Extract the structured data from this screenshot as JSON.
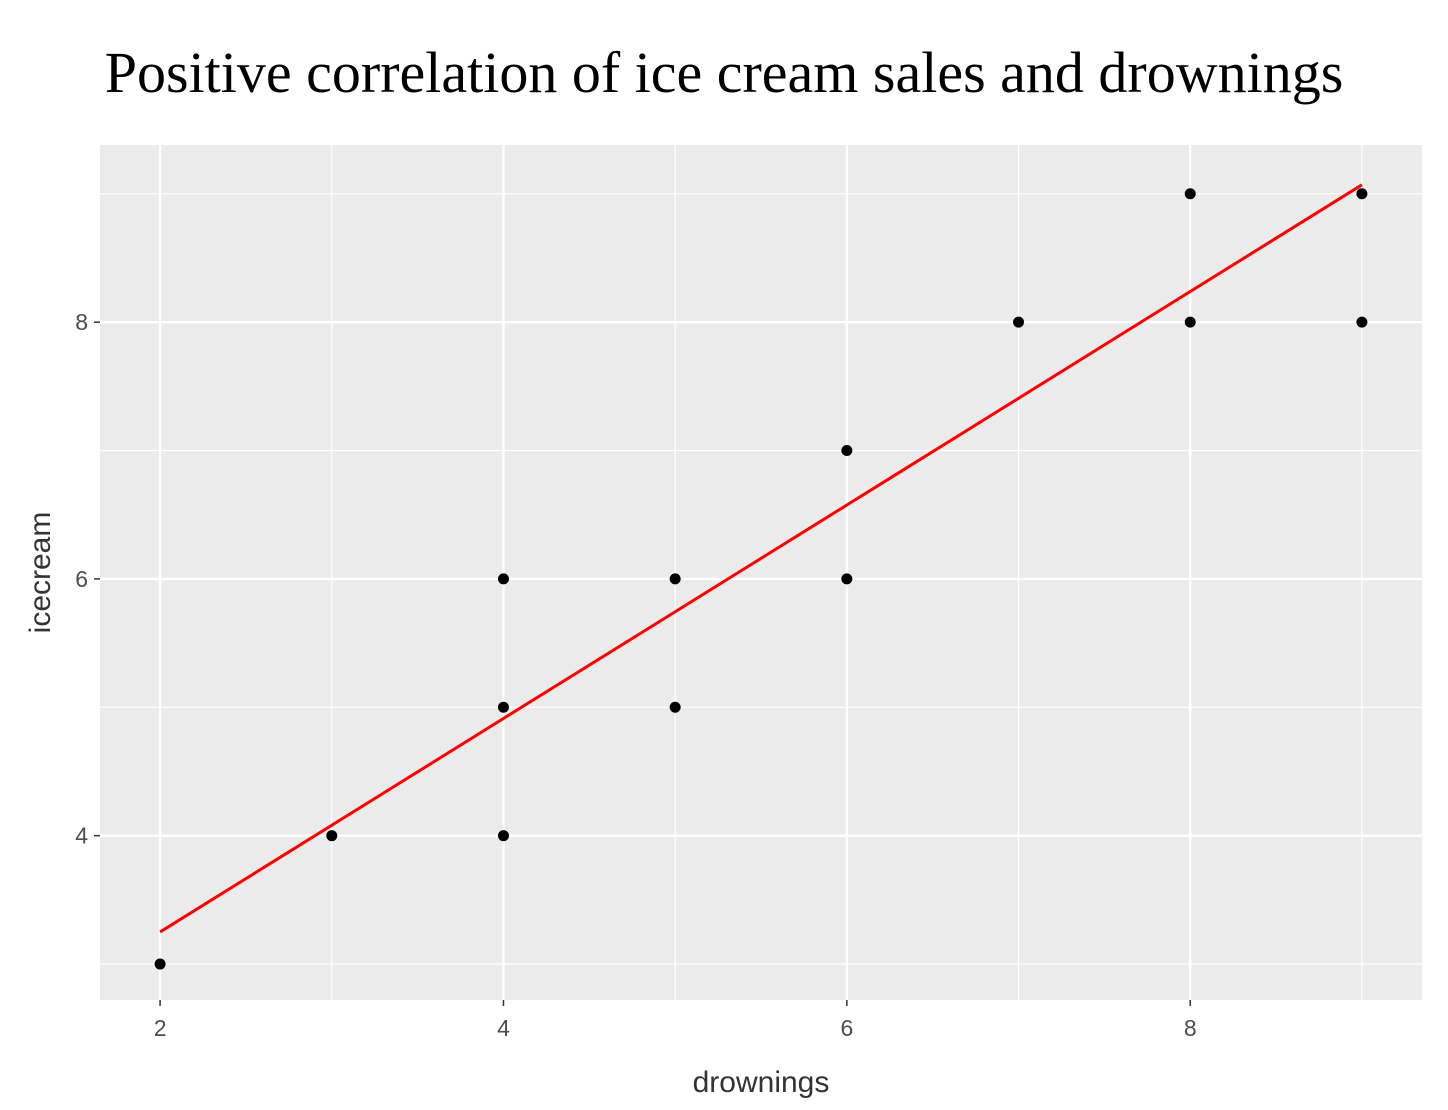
{
  "chart_data": {
    "type": "scatter",
    "title": "Positive correlation of ice cream sales and drownings",
    "xlabel": "drownings",
    "ylabel": "icecream",
    "xlim": [
      1.65,
      9.35
    ],
    "ylim": [
      2.72,
      9.38
    ],
    "x_ticks": [
      2,
      4,
      6,
      8
    ],
    "y_ticks": [
      4,
      6,
      8
    ],
    "grid": true,
    "legend": "none",
    "points": [
      {
        "x": 2,
        "y": 3
      },
      {
        "x": 3,
        "y": 4
      },
      {
        "x": 4,
        "y": 4
      },
      {
        "x": 4,
        "y": 5
      },
      {
        "x": 4,
        "y": 6
      },
      {
        "x": 5,
        "y": 5
      },
      {
        "x": 5,
        "y": 6
      },
      {
        "x": 6,
        "y": 6
      },
      {
        "x": 6,
        "y": 7
      },
      {
        "x": 7,
        "y": 8
      },
      {
        "x": 8,
        "y": 8
      },
      {
        "x": 8,
        "y": 9
      },
      {
        "x": 9,
        "y": 8
      },
      {
        "x": 9,
        "y": 9
      }
    ],
    "fit_line": {
      "x": [
        2,
        9
      ],
      "y": [
        3.25,
        9.07
      ],
      "color": "#ff0000"
    },
    "colors": {
      "panel": "#ebebeb",
      "grid": "#ffffff",
      "point": "#000000",
      "fit": "#ff0000"
    }
  }
}
